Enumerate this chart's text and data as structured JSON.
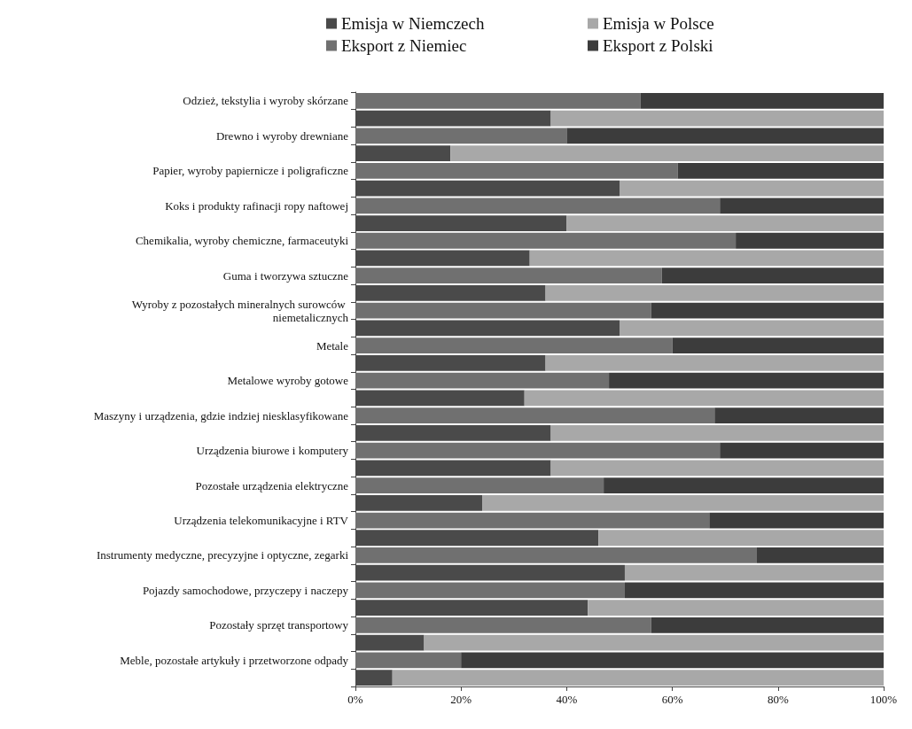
{
  "chart_data": {
    "type": "bar",
    "orientation": "horizontal",
    "stacked": true,
    "legend": "top",
    "grid": false,
    "categories": [
      "Odzież, tekstylia i wyroby skórzane",
      null,
      "Drewno i wyroby drewniane",
      null,
      "Papier, wyroby papiernicze i poligraficzne",
      null,
      "Koks i produkty rafinacji ropy naftowej",
      null,
      "Chemikalia, wyroby chemiczne, farmaceutyki",
      null,
      "Guma i tworzywa sztuczne",
      null,
      "Wyroby z pozostałych mineralnych surowców niemetalicznych",
      null,
      "Metale",
      null,
      "Metalowe wyroby gotowe",
      null,
      "Maszyny i urządzenia, gdzie indziej niesklasyfikowane",
      null,
      "Urządzenia biurowe i komputery",
      null,
      "Pozostałe urządzenia elektryczne",
      null,
      "Urządzenia telekomunikacyjne i RTV",
      null,
      "Instrumenty medyczne, precyzyjne i optyczne, zegarki",
      null,
      "Pojazdy samochodowe, przyczepy i naczepy",
      null,
      "Pozostały sprzęt transportowy",
      null,
      "Meble, pozostałe artykuły i przetworzone odpady",
      null
    ],
    "series": [
      {
        "name": "Emisja w Niemczech",
        "color": "#4a4a4a",
        "values": [
          null,
          37,
          null,
          18,
          null,
          50,
          null,
          40,
          null,
          33,
          null,
          36,
          null,
          50,
          null,
          36,
          null,
          32,
          null,
          37,
          null,
          37,
          null,
          24,
          null,
          46,
          null,
          51,
          null,
          44,
          null,
          13,
          null,
          7
        ]
      },
      {
        "name": "Emisja w Polsce",
        "color": "#a8a8a8",
        "values": [
          null,
          63,
          null,
          82,
          null,
          50,
          null,
          60,
          null,
          67,
          null,
          64,
          null,
          50,
          null,
          64,
          null,
          68,
          null,
          63,
          null,
          63,
          null,
          76,
          null,
          54,
          null,
          49,
          null,
          56,
          null,
          87,
          null,
          93
        ]
      },
      {
        "name": "Eksport z Niemiec",
        "color": "#707070",
        "values": [
          54,
          null,
          40,
          null,
          61,
          null,
          69,
          null,
          72,
          null,
          58,
          null,
          56,
          null,
          60,
          null,
          48,
          null,
          68,
          null,
          69,
          null,
          47,
          null,
          67,
          null,
          76,
          null,
          51,
          null,
          56,
          null,
          20,
          null
        ]
      },
      {
        "name": "Eksport z Polski",
        "color": "#3c3c3c",
        "values": [
          46,
          null,
          60,
          null,
          39,
          null,
          31,
          null,
          28,
          null,
          42,
          null,
          44,
          null,
          40,
          null,
          52,
          null,
          32,
          null,
          31,
          null,
          53,
          null,
          33,
          null,
          24,
          null,
          49,
          null,
          44,
          null,
          80,
          null
        ]
      }
    ],
    "xlim": [
      0,
      100
    ],
    "xticks": [
      {
        "value": 0,
        "label": "0%"
      },
      {
        "value": 20,
        "label": "20%"
      },
      {
        "value": 40,
        "label": "40%"
      },
      {
        "value": 60,
        "label": "60%"
      },
      {
        "value": 80,
        "label": "80%"
      },
      {
        "value": 100,
        "label": "100%"
      }
    ]
  }
}
